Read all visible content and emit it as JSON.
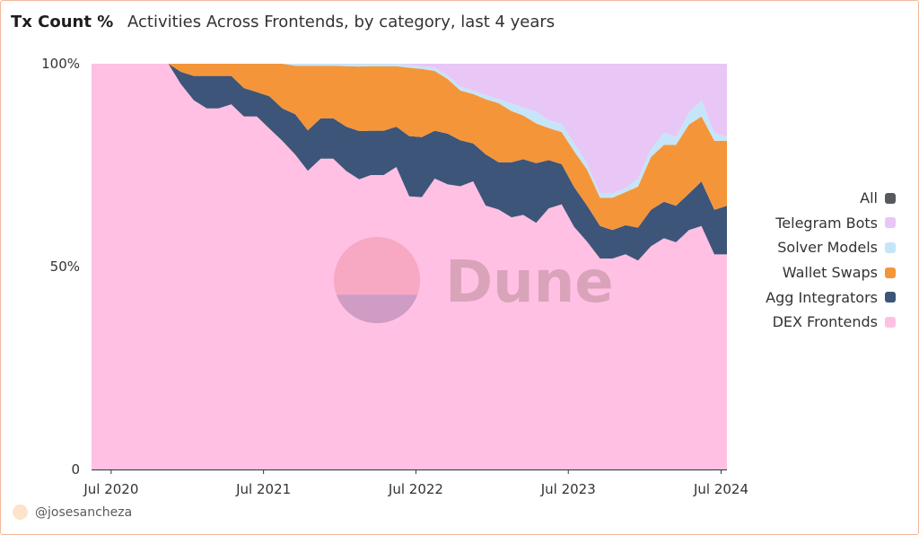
{
  "header": {
    "title": "Tx Count %",
    "subtitle": "Activities Across Frontends, by category, last 4 years"
  },
  "footer": {
    "author": "@josesancheza"
  },
  "watermark": {
    "text": "Dune"
  },
  "colors": {
    "plot_bg": "#ffffff",
    "axis": "#333333"
  },
  "chart_data": {
    "type": "area",
    "stacked": true,
    "normalized": true,
    "x_domain": [
      "2020-05-15",
      "2024-07-15"
    ],
    "x": [
      "2020-05-15",
      "2020-06-15",
      "2020-07-15",
      "2020-08-15",
      "2020-09-15",
      "2020-10-15",
      "2020-11-15",
      "2020-12-15",
      "2021-01-15",
      "2021-02-15",
      "2021-03-15",
      "2021-04-15",
      "2021-05-15",
      "2021-06-15",
      "2021-07-15",
      "2021-08-15",
      "2021-09-15",
      "2021-10-15",
      "2021-11-15",
      "2021-12-15",
      "2022-01-15",
      "2022-02-15",
      "2022-03-15",
      "2022-04-15",
      "2022-05-15",
      "2022-06-15",
      "2022-07-15",
      "2022-08-15",
      "2022-09-15",
      "2022-10-15",
      "2022-11-15",
      "2022-12-15",
      "2023-01-15",
      "2023-02-15",
      "2023-03-15",
      "2023-04-15",
      "2023-05-15",
      "2023-06-15",
      "2023-07-15",
      "2023-08-15",
      "2023-09-15",
      "2023-10-15",
      "2023-11-15",
      "2023-12-15",
      "2024-01-15",
      "2024-02-15",
      "2024-03-15",
      "2024-04-15",
      "2024-05-15",
      "2024-06-15",
      "2024-07-15"
    ],
    "series": [
      {
        "name": "DEX Frontends",
        "color": "#ffc0e3",
        "values": [
          100,
          100,
          100,
          100,
          100,
          100,
          100,
          95,
          91,
          89,
          89,
          90,
          87,
          87,
          84,
          81,
          78,
          74,
          77,
          77,
          74,
          72,
          73,
          73,
          75,
          68,
          68,
          73,
          73,
          74,
          76,
          67,
          66,
          64,
          64,
          62,
          65,
          66,
          61,
          57,
          52,
          52,
          52,
          51,
          55,
          57,
          56,
          59,
          60,
          53,
          53
        ]
      },
      {
        "name": "Agg Integrators",
        "color": "#3d5578",
        "values": [
          0,
          0,
          0,
          0,
          0,
          0,
          0,
          3,
          6,
          8,
          8,
          7,
          7,
          6,
          8,
          8,
          10,
          10,
          10,
          10,
          11,
          12,
          11,
          11,
          10,
          15,
          15,
          12,
          13,
          12,
          10,
          13,
          12,
          14,
          14,
          15,
          12,
          10,
          10,
          9,
          8,
          7,
          7,
          8,
          9,
          9,
          9,
          9,
          11,
          11,
          12
        ]
      },
      {
        "name": "Wallet Swaps",
        "color": "#f4953a",
        "values": [
          0,
          0,
          0,
          0,
          0,
          0,
          0,
          2,
          3,
          3,
          3,
          3,
          6,
          7,
          8,
          11,
          12,
          16,
          13,
          13,
          15,
          16,
          16,
          16,
          15,
          17,
          17,
          15,
          14,
          13,
          13,
          14,
          15,
          13,
          11,
          10,
          8,
          8,
          9,
          9,
          7,
          8,
          8,
          10,
          13,
          14,
          15,
          17,
          16,
          17,
          16
        ]
      },
      {
        "name": "Solver Models",
        "color": "#c6e5f8",
        "values": [
          0,
          0,
          0,
          0,
          0,
          0,
          0,
          0,
          0,
          0,
          0,
          0,
          0,
          0,
          0,
          0,
          0.5,
          0.5,
          0.5,
          0.5,
          0.6,
          0.7,
          0.6,
          0.6,
          0.6,
          0.7,
          0.7,
          0.8,
          0.9,
          1,
          1,
          1,
          1,
          2,
          2,
          3,
          2,
          2,
          2,
          1.5,
          1,
          1,
          1,
          2,
          2,
          3,
          2,
          3,
          4,
          2,
          1
        ]
      },
      {
        "name": "Telegram Bots",
        "color": "#e8c6f6",
        "values": [
          0,
          0,
          0,
          0,
          0,
          0,
          0,
          0,
          0,
          0,
          0,
          0,
          0,
          0,
          0,
          0,
          0,
          0,
          0,
          0,
          0,
          0,
          0,
          0,
          0,
          0.3,
          0.6,
          1,
          3,
          6,
          7,
          8,
          9,
          10,
          11,
          12,
          14,
          15,
          20,
          25,
          32,
          32,
          30,
          28,
          21,
          17,
          18,
          12,
          9,
          17,
          18
        ]
      },
      {
        "name": "All",
        "color": "#56595e",
        "values": [
          0,
          0,
          0,
          0,
          0,
          0,
          0,
          0,
          0,
          0,
          0,
          0,
          0,
          0,
          0,
          0,
          0,
          0,
          0,
          0,
          0,
          0,
          0,
          0,
          0,
          0,
          0,
          0,
          0,
          0,
          0,
          0,
          0,
          0,
          0,
          0,
          0,
          0,
          0,
          0,
          0,
          0,
          0,
          0,
          0,
          0,
          0,
          0,
          0,
          0,
          0
        ]
      }
    ],
    "legend_order": [
      "All",
      "Telegram Bots",
      "Solver Models",
      "Wallet Swaps",
      "Agg Integrators",
      "DEX Frontends"
    ],
    "legend_position": "right",
    "ylim": [
      0,
      100
    ],
    "yticks": [
      {
        "value": 0,
        "label": "0"
      },
      {
        "value": 50,
        "label": "50%"
      },
      {
        "value": 100,
        "label": "100%"
      }
    ],
    "xticks": [
      {
        "date": "2020-07-01",
        "label": "Jul 2020"
      },
      {
        "date": "2021-07-01",
        "label": "Jul 2021"
      },
      {
        "date": "2022-07-01",
        "label": "Jul 2022"
      },
      {
        "date": "2023-07-01",
        "label": "Jul 2023"
      },
      {
        "date": "2024-07-01",
        "label": "Jul 2024"
      }
    ],
    "grid": false
  }
}
